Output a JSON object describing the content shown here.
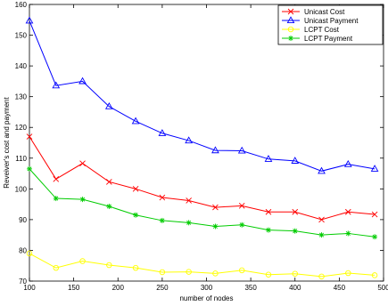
{
  "chart_data": {
    "type": "line",
    "xlabel": "number of nodes",
    "ylabel": "Reveiver's cost and payment",
    "xlim": [
      100,
      500
    ],
    "ylim": [
      70,
      160
    ],
    "xticks": [
      100,
      150,
      200,
      250,
      300,
      350,
      400,
      450,
      500
    ],
    "yticks": [
      70,
      80,
      90,
      100,
      110,
      120,
      130,
      140,
      150,
      160
    ],
    "x": [
      100,
      130,
      160,
      190,
      220,
      250,
      280,
      310,
      340,
      370,
      400,
      430,
      460,
      490
    ],
    "legend_position": "top-right",
    "grid": false,
    "series": [
      {
        "name": "Unicast Cost",
        "color": "#ff0000",
        "marker": "x",
        "values": [
          117,
          103.2,
          108.3,
          102.3,
          100,
          97.2,
          96.2,
          94,
          94.5,
          92.5,
          92.5,
          90,
          92.5,
          91.7
        ]
      },
      {
        "name": "Unicast Payment",
        "color": "#0000ff",
        "marker": "triangle",
        "values": [
          154.7,
          133.6,
          135,
          126.8,
          122,
          118.1,
          115.7,
          112.5,
          112.4,
          109.7,
          109.1,
          105.8,
          108,
          106.5
        ]
      },
      {
        "name": "LCPT Cost",
        "color": "#ffff00",
        "marker": "circle",
        "values": [
          79,
          74.3,
          76.5,
          75.2,
          74.3,
          72.9,
          73,
          72.5,
          73.5,
          72.1,
          72.4,
          71.5,
          72.6,
          71.9
        ]
      },
      {
        "name": "LCPT Payment",
        "color": "#00cc00",
        "marker": "star",
        "values": [
          106.5,
          96.9,
          96.6,
          94.3,
          91.5,
          89.7,
          89,
          87.8,
          88.3,
          86.6,
          86.3,
          85,
          85.5,
          84.4
        ]
      }
    ]
  }
}
